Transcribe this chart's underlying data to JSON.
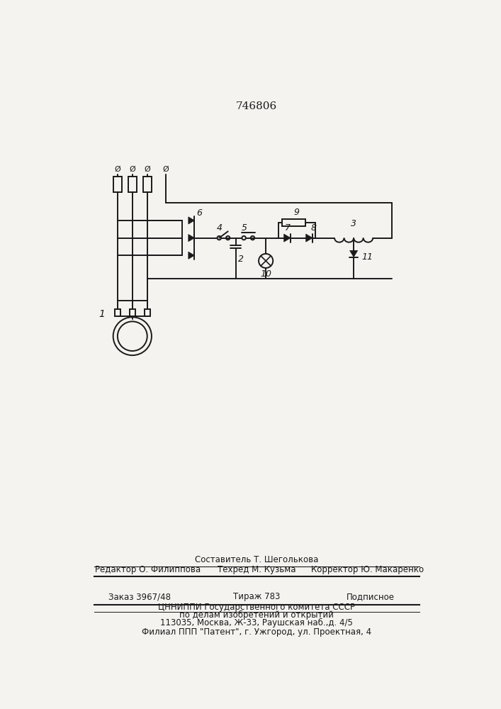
{
  "title": "746806",
  "bg_color": "#f5f3f0",
  "line_color": "#1a1a1a",
  "footer": {
    "line1": "Составитель Т. Шеголькова",
    "editor": "Редактор О. Филиппова",
    "tech": "Техред М. Кузьма",
    "corrector": "Корректор Ю. Макаренко",
    "order": "Заказ 3967/48",
    "tirazh": "Тираж 783",
    "podpis": "Подписное",
    "org1": "ЦННИППИ Государственного комитета СССР",
    "org2": "по делам изобретений и открытий",
    "addr": "113035, Москва, Ж-33, Раушская наб.,д. 4/5",
    "filial": "Филиал ППП \"Патент\", г. Ужгород, ул. Проектная, 4"
  }
}
